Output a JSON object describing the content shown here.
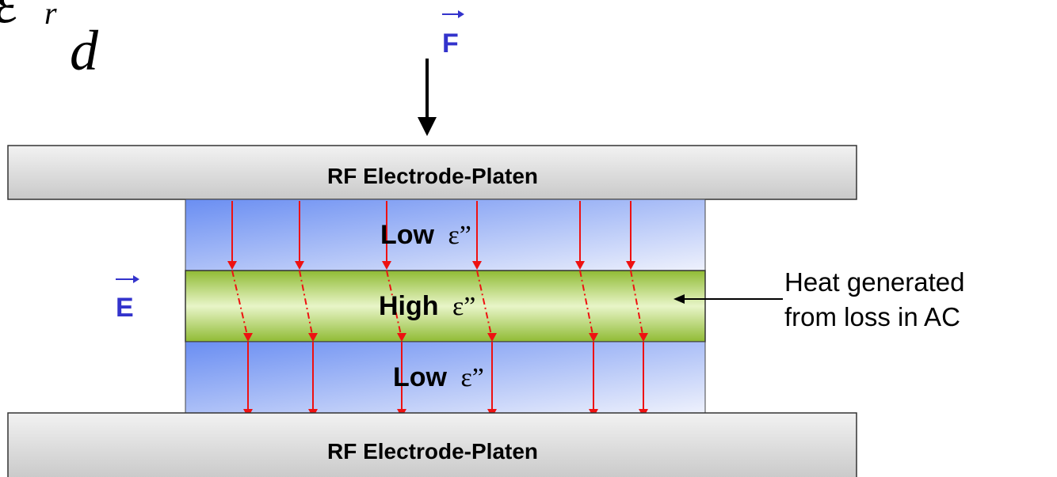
{
  "formula": {
    "symbol": "ε",
    "subscript": "r",
    "denominator": "d"
  },
  "force": {
    "label": "F",
    "color": "#3333cc"
  },
  "field": {
    "label": "E",
    "color": "#3333cc"
  },
  "platen_top": {
    "label": "RF Electrode-Platen"
  },
  "platen_bottom": {
    "label": "RF Electrode-Platen"
  },
  "layers": {
    "top": {
      "word": "Low",
      "symbol": "ε”"
    },
    "middle": {
      "word": "High",
      "symbol": "ε”"
    },
    "bottom": {
      "word": "Low",
      "symbol": "ε”"
    }
  },
  "annotation": {
    "line1": "Heat generated",
    "line2": "from loss in AC"
  },
  "colors": {
    "field_line": "#ee1111",
    "low_layer": "#6e8ff2",
    "high_layer": "#a8cc4a",
    "platen": "#d4d4d4"
  }
}
